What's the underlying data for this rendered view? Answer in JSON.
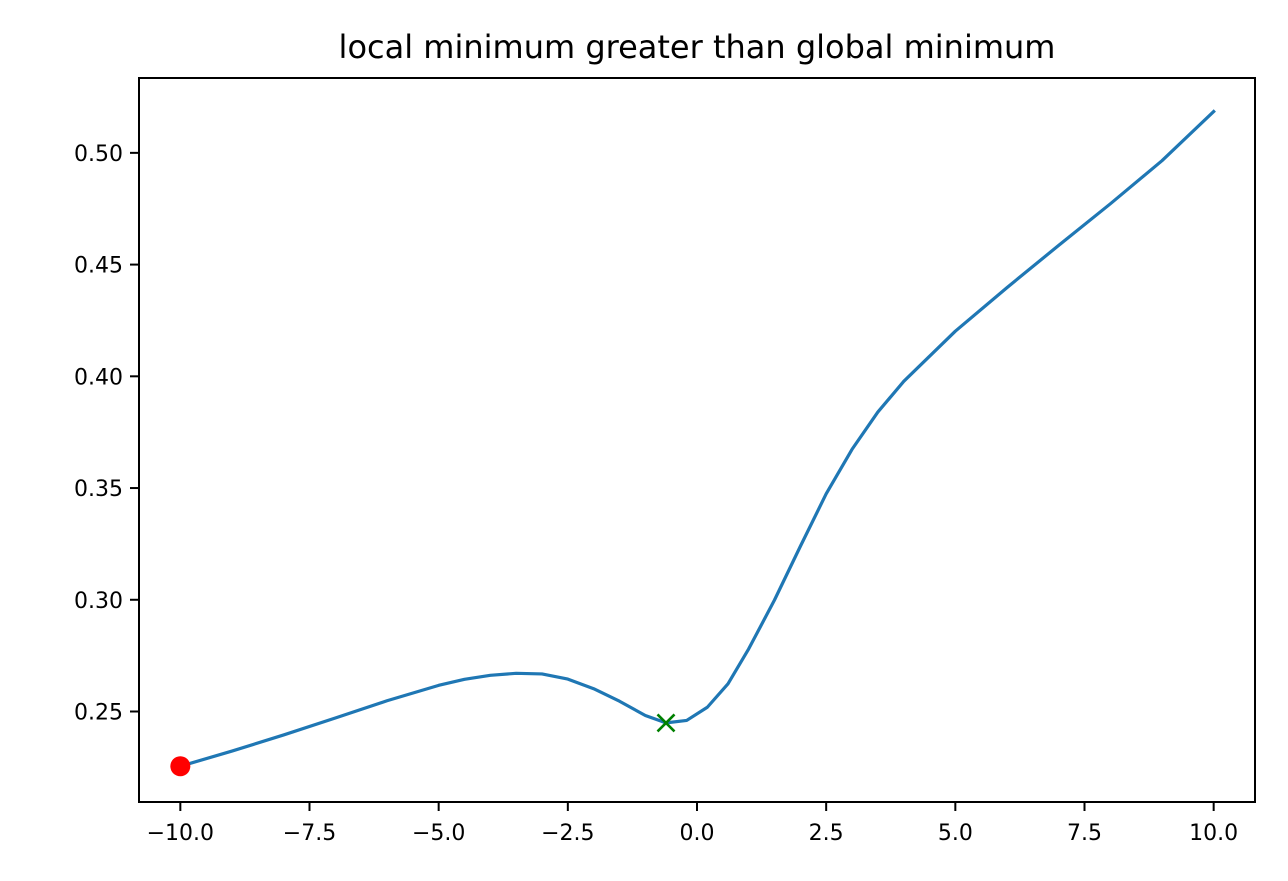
{
  "chart_data": {
    "type": "line",
    "title": "local minimum greater than global minimum",
    "xlabel": "",
    "ylabel": "",
    "xlim": [
      -10.8,
      10.8
    ],
    "ylim": [
      0.2095,
      0.5335
    ],
    "grid": false,
    "x_ticks": [
      {
        "value": -10.0,
        "label": "−10.0"
      },
      {
        "value": -7.5,
        "label": "−7.5"
      },
      {
        "value": -5.0,
        "label": "−5.0"
      },
      {
        "value": -2.5,
        "label": "−2.5"
      },
      {
        "value": 0.0,
        "label": "0.0"
      },
      {
        "value": 2.5,
        "label": "2.5"
      },
      {
        "value": 5.0,
        "label": "5.0"
      },
      {
        "value": 7.5,
        "label": "7.5"
      },
      {
        "value": 10.0,
        "label": "10.0"
      }
    ],
    "y_ticks": [
      {
        "value": 0.25,
        "label": "0.25"
      },
      {
        "value": 0.3,
        "label": "0.30"
      },
      {
        "value": 0.35,
        "label": "0.35"
      },
      {
        "value": 0.4,
        "label": "0.40"
      },
      {
        "value": 0.45,
        "label": "0.45"
      },
      {
        "value": 0.5,
        "label": "0.50"
      }
    ],
    "series": [
      {
        "color": "#1f77b4",
        "x": [
          -10.0,
          -9.0,
          -8.0,
          -7.0,
          -6.0,
          -5.0,
          -4.5,
          -4.0,
          -3.5,
          -3.0,
          -2.5,
          -2.0,
          -1.5,
          -1.0,
          -0.6,
          -0.2,
          0.2,
          0.6,
          1.0,
          1.5,
          2.0,
          2.5,
          3.0,
          3.5,
          4.0,
          5.0,
          6.0,
          7.0,
          8.0,
          9.0,
          10.0
        ],
        "y": [
          0.2255,
          0.2323,
          0.2395,
          0.2471,
          0.2548,
          0.2617,
          0.2644,
          0.2662,
          0.2671,
          0.2668,
          0.2645,
          0.2602,
          0.2546,
          0.2482,
          0.2449,
          0.246,
          0.2519,
          0.2624,
          0.278,
          0.2999,
          0.3239,
          0.3474,
          0.3673,
          0.384,
          0.3977,
          0.4202,
          0.4397,
          0.4586,
          0.4772,
          0.4965,
          0.5185
        ]
      }
    ],
    "markers": [
      {
        "name": "start-point",
        "x": -10.0,
        "y": 0.2255,
        "shape": "circle",
        "color": "#ff0000"
      },
      {
        "name": "local-minimum",
        "x": -0.6,
        "y": 0.2449,
        "shape": "x",
        "color": "#008000"
      }
    ]
  }
}
